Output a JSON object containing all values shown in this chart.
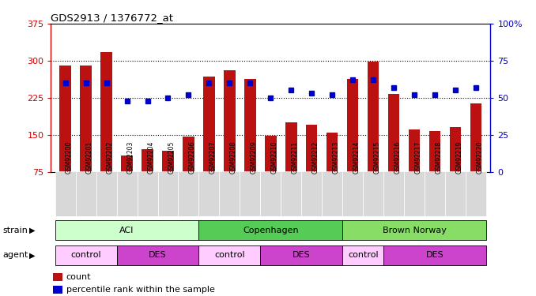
{
  "title": "GDS2913 / 1376772_at",
  "samples": [
    "GSM92200",
    "GSM92201",
    "GSM92202",
    "GSM92203",
    "GSM92204",
    "GSM92205",
    "GSM92206",
    "GSM92207",
    "GSM92208",
    "GSM92209",
    "GSM92210",
    "GSM92211",
    "GSM92212",
    "GSM92213",
    "GSM92214",
    "GSM92215",
    "GSM92216",
    "GSM92217",
    "GSM92218",
    "GSM92219",
    "GSM92220"
  ],
  "counts": [
    290,
    291,
    318,
    108,
    120,
    118,
    147,
    268,
    280,
    263,
    148,
    175,
    170,
    155,
    263,
    298,
    232,
    161,
    158,
    166,
    213
  ],
  "percentile": [
    60,
    60,
    60,
    48,
    48,
    50,
    52,
    60,
    60,
    60,
    50,
    55,
    53,
    52,
    62,
    62,
    57,
    52,
    52,
    55,
    57
  ],
  "bar_color": "#bb1111",
  "dot_color": "#0000cc",
  "ylim_left": [
    75,
    375
  ],
  "yticks_left": [
    75,
    150,
    225,
    300,
    375
  ],
  "ylim_right": [
    0,
    100
  ],
  "yticks_right": [
    0,
    25,
    50,
    75,
    100
  ],
  "yticklabels_right": [
    "0",
    "25",
    "50",
    "75",
    "100%"
  ],
  "bg_color": "#ffffff",
  "tick_label_bg": "#d8d8d8",
  "strain_groups": [
    {
      "label": "ACI",
      "start": 0,
      "end": 6,
      "color": "#ccffcc"
    },
    {
      "label": "Copenhagen",
      "start": 7,
      "end": 13,
      "color": "#55cc55"
    },
    {
      "label": "Brown Norway",
      "start": 14,
      "end": 20,
      "color": "#88dd66"
    }
  ],
  "agent_groups": [
    {
      "label": "control",
      "start": 0,
      "end": 2,
      "color": "#ffccff"
    },
    {
      "label": "DES",
      "start": 3,
      "end": 6,
      "color": "#cc44cc"
    },
    {
      "label": "control",
      "start": 7,
      "end": 9,
      "color": "#ffccff"
    },
    {
      "label": "DES",
      "start": 10,
      "end": 13,
      "color": "#cc44cc"
    },
    {
      "label": "control",
      "start": 14,
      "end": 15,
      "color": "#ffccff"
    },
    {
      "label": "DES",
      "start": 16,
      "end": 20,
      "color": "#cc44cc"
    }
  ],
  "left_axis_color": "#cc0000",
  "right_axis_color": "#0000cc",
  "grid_color": "#000000",
  "grid_linestyle": ":",
  "grid_linewidth": 0.8,
  "hgrid_values": [
    150,
    225,
    300
  ],
  "bar_bottom": 75,
  "strain_label": "strain",
  "agent_label": "agent"
}
